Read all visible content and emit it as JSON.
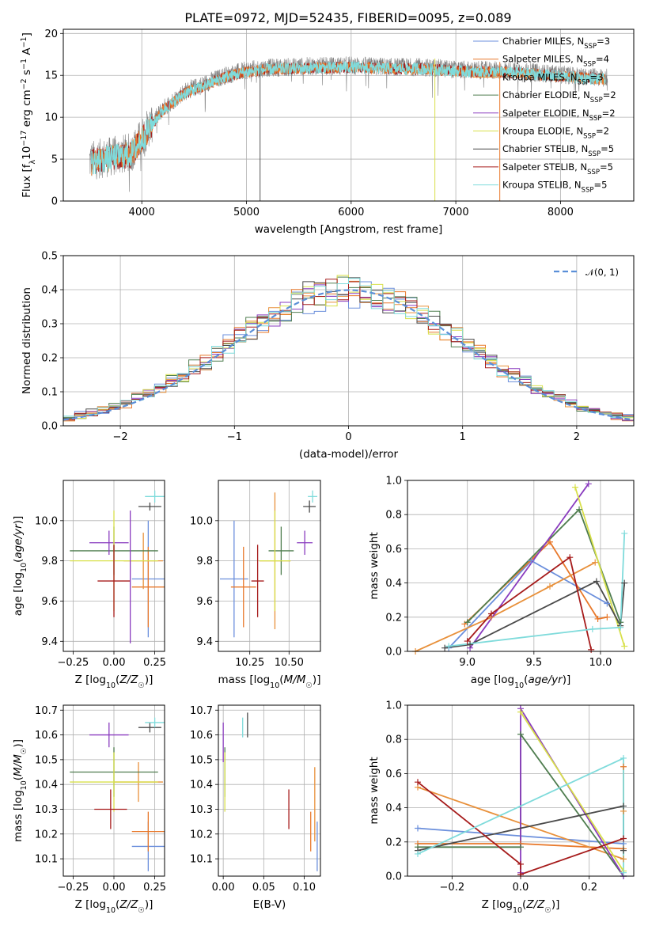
{
  "figure_title": "PLATE=0972, MJD=52435, FIBERID=0095, z=0.089",
  "models": [
    {
      "name": "Chabrier MILES",
      "nssp": "3",
      "color": "#6b8fdc"
    },
    {
      "name": "Salpeter MILES",
      "nssp": "4",
      "color": "#e8782a"
    },
    {
      "name": "Kroupa MILES",
      "nssp": "3",
      "color": "#e8903a"
    },
    {
      "name": "Chabrier ELODIE",
      "nssp": "2",
      "color": "#4f7d4f"
    },
    {
      "name": "Salpeter ELODIE",
      "nssp": "2",
      "color": "#8a3cbf"
    },
    {
      "name": "Kroupa ELODIE",
      "nssp": "2",
      "color": "#d8e04a"
    },
    {
      "name": "Chabrier STELIB",
      "nssp": "5",
      "color": "#4a4a4a"
    },
    {
      "name": "Salpeter STELIB",
      "nssp": "5",
      "color": "#a61b1b"
    },
    {
      "name": "Kroupa STELIB",
      "nssp": "5",
      "color": "#7fdbdb"
    }
  ],
  "chart_data": [
    {
      "id": "spectrum",
      "type": "line",
      "xlabel": "wavelength [Angstrom, rest frame]",
      "ylabel_parts": {
        "a": "Flux [f",
        "b": "λ",
        "c": "10",
        "d": "−17",
        "e": " erg cm",
        "f": "−2",
        "g": " s",
        "h": "−1",
        "i": " A",
        "j": "−1",
        "k": "]"
      },
      "xlim": [
        3250,
        8700
      ],
      "ylim": [
        0,
        20.5
      ],
      "xticks": [
        4000,
        5000,
        6000,
        7000,
        8000
      ],
      "yticks": [
        0,
        5,
        10,
        15,
        20
      ],
      "continuum": {
        "x": [
          3500,
          3700,
          3900,
          4050,
          4200,
          4400,
          4600,
          4800,
          5000,
          5200,
          5400,
          5600,
          5800,
          6000,
          6200,
          6400,
          6600,
          6800,
          7000,
          7200,
          7400,
          7600,
          7800,
          8000,
          8200,
          8450
        ],
        "y": [
          4.8,
          5.3,
          5.8,
          8.5,
          11.0,
          13.0,
          14.0,
          15.0,
          15.6,
          15.9,
          16.0,
          16.1,
          16.1,
          16.2,
          16.1,
          16.0,
          16.0,
          15.9,
          15.7,
          15.6,
          15.6,
          15.5,
          15.3,
          15.1,
          14.9,
          14.7
        ]
      },
      "series_color_data": "gray",
      "spikes": [
        {
          "x": 5130,
          "from": 0,
          "to": 16,
          "color": "#555555"
        },
        {
          "x": 6800,
          "from": 0,
          "to": 17,
          "color": "#d8e04a"
        },
        {
          "x": 7420,
          "from": 0,
          "to": 16.6,
          "color": "#e8782a"
        }
      ],
      "legend_position": "upper right"
    },
    {
      "id": "residuals",
      "type": "histogram",
      "xlabel": "(data-model)/error",
      "ylabel": "Normed distribution",
      "xlim": [
        -2.5,
        2.5
      ],
      "ylim": [
        0,
        0.5
      ],
      "xticks": [
        -2,
        -1,
        0,
        1,
        2
      ],
      "yticks": [
        0,
        0.1,
        0.2,
        0.3,
        0.4,
        0.5
      ],
      "bins": 50,
      "reference_label": "𝒩(0, 1)",
      "reference_color": "#5b8fd8"
    },
    {
      "id": "age-metallicity",
      "type": "errorbar",
      "xlabel": "Z [log10(Z/Z☉)]",
      "ylabel": "age  [log10(age/yr)]",
      "xlim": [
        -0.31,
        0.31
      ],
      "ylim": [
        9.35,
        10.2
      ],
      "xticks": [
        -0.25,
        0.0,
        0.25
      ],
      "yticks": [
        9.4,
        9.6,
        9.8,
        10.0
      ],
      "points": [
        {
          "model": 0,
          "x": 0.21,
          "xe": 0.1,
          "y": 9.71,
          "ye": 0.29
        },
        {
          "model": 1,
          "x": 0.21,
          "xe": 0.1,
          "y": 9.67,
          "ye": 0.2
        },
        {
          "model": 2,
          "x": 0.18,
          "xe": 0.12,
          "y": 9.8,
          "ye": 0.14
        },
        {
          "model": 3,
          "x": 0.0,
          "xe": 0.27,
          "y": 9.85,
          "ye": 0.12
        },
        {
          "model": 4,
          "x": -0.03,
          "xe": 0.12,
          "y": 9.89,
          "ye": 0.06
        },
        {
          "model": 5,
          "x": 0.0,
          "xe": 0.27,
          "y": 9.8,
          "ye": 0.25
        },
        {
          "model": 6,
          "x": 0.22,
          "xe": 0.07,
          "y": 10.07,
          "ye": 0.02
        },
        {
          "model": 7,
          "x": 0.0,
          "xe": 0.1,
          "y": 9.7,
          "ye": 0.18
        },
        {
          "model": 8,
          "x": 0.25,
          "xe": 0.06,
          "y": 10.12,
          "ye": 0.03
        },
        {
          "model": 4,
          "x": 0.1,
          "xe": 0.0,
          "y": 9.72,
          "ye": 0.33
        }
      ]
    },
    {
      "id": "age-mass",
      "type": "errorbar",
      "xlabel": "mass [log10(M/M☉)]",
      "xlim": [
        10.05,
        10.7
      ],
      "ylim": [
        9.35,
        10.2
      ],
      "xticks": [
        10.25,
        10.5
      ],
      "yticks": [
        9.4,
        9.6,
        9.8,
        10.0
      ],
      "points": [
        {
          "model": 0,
          "x": 10.15,
          "xe": 0.09,
          "y": 9.71,
          "ye": 0.29
        },
        {
          "model": 1,
          "x": 10.21,
          "xe": 0.08,
          "y": 9.67,
          "ye": 0.2
        },
        {
          "model": 2,
          "x": 10.41,
          "xe": 0.1,
          "y": 9.8,
          "ye": 0.34
        },
        {
          "model": 3,
          "x": 10.45,
          "xe": 0.08,
          "y": 9.85,
          "ye": 0.12
        },
        {
          "model": 4,
          "x": 10.6,
          "xe": 0.05,
          "y": 9.89,
          "ye": 0.06
        },
        {
          "model": 5,
          "x": 10.41,
          "xe": 0.1,
          "y": 9.8,
          "ye": 0.25
        },
        {
          "model": 6,
          "x": 10.63,
          "xe": 0.04,
          "y": 10.07,
          "ye": 0.03
        },
        {
          "model": 7,
          "x": 10.3,
          "xe": 0.04,
          "y": 9.7,
          "ye": 0.18
        },
        {
          "model": 8,
          "x": 10.65,
          "xe": 0.03,
          "y": 10.12,
          "ye": 0.03
        }
      ]
    },
    {
      "id": "weight-age",
      "type": "line",
      "xlabel": "age  [log10(age/yr)]",
      "ylabel": "mass weight",
      "xlim": [
        8.55,
        10.25
      ],
      "ylim": [
        0,
        1
      ],
      "xticks": [
        9.0,
        9.5,
        10.0
      ],
      "yticks": [
        0.0,
        0.2,
        0.4,
        0.6,
        0.8,
        1.0
      ],
      "series": [
        {
          "model": 0,
          "x": [
            8.86,
            9.48,
            10.05
          ],
          "y": [
            0.02,
            0.53,
            0.28
          ]
        },
        {
          "model": 1,
          "x": [
            8.98,
            9.62,
            9.98,
            10.05
          ],
          "y": [
            0.16,
            0.64,
            0.19,
            0.2
          ]
        },
        {
          "model": 2,
          "x": [
            8.61,
            9.18,
            9.62,
            9.96
          ],
          "y": [
            0.0,
            0.2,
            0.38,
            0.52
          ]
        },
        {
          "model": 3,
          "x": [
            9.0,
            9.84,
            10.15
          ],
          "y": [
            0.17,
            0.83,
            0.17
          ]
        },
        {
          "model": 4,
          "x": [
            9.02,
            9.91
          ],
          "y": [
            0.02,
            0.98
          ]
        },
        {
          "model": 5,
          "x": [
            9.81,
            10.18
          ],
          "y": [
            0.96,
            0.03
          ]
        },
        {
          "model": 6,
          "x": [
            8.83,
            9.02,
            9.97,
            10.15,
            10.18
          ],
          "y": [
            0.02,
            0.04,
            0.41,
            0.15,
            0.4
          ]
        },
        {
          "model": 7,
          "x": [
            9.0,
            9.18,
            9.77,
            9.93
          ],
          "y": [
            0.06,
            0.22,
            0.55,
            0.01
          ]
        },
        {
          "model": 8,
          "x": [
            8.86,
            9.94,
            10.15,
            10.18
          ],
          "y": [
            0.03,
            0.13,
            0.14,
            0.69
          ]
        }
      ]
    },
    {
      "id": "mass-metallicity",
      "type": "errorbar",
      "xlabel": "Z [log10(Z/Z☉)]",
      "ylabel": "mass [log10(M/M☉)]",
      "xlim": [
        -0.31,
        0.31
      ],
      "ylim": [
        10.03,
        10.72
      ],
      "xticks": [
        -0.25,
        0.0,
        0.25
      ],
      "yticks": [
        10.1,
        10.2,
        10.3,
        10.4,
        10.5,
        10.6,
        10.7
      ],
      "points": [
        {
          "model": 0,
          "x": 0.21,
          "xe": 0.1,
          "y": 10.15,
          "ye": 0.1
        },
        {
          "model": 1,
          "x": 0.21,
          "xe": 0.1,
          "y": 10.21,
          "ye": 0.08
        },
        {
          "model": 2,
          "x": 0.15,
          "xe": 0.15,
          "y": 10.41,
          "ye": 0.08
        },
        {
          "model": 3,
          "x": 0.0,
          "xe": 0.27,
          "y": 10.45,
          "ye": 0.1
        },
        {
          "model": 4,
          "x": -0.03,
          "xe": 0.12,
          "y": 10.6,
          "ye": 0.05
        },
        {
          "model": 5,
          "x": 0.0,
          "xe": 0.27,
          "y": 10.41,
          "ye": 0.12
        },
        {
          "model": 6,
          "x": 0.22,
          "xe": 0.07,
          "y": 10.63,
          "ye": 0.02
        },
        {
          "model": 7,
          "x": -0.02,
          "xe": 0.1,
          "y": 10.3,
          "ye": 0.08
        },
        {
          "model": 8,
          "x": 0.25,
          "xe": 0.06,
          "y": 10.65,
          "ye": 0.02
        }
      ]
    },
    {
      "id": "mass-ebv",
      "type": "errorbar",
      "xlabel": "E(B-V)",
      "xlim": [
        -0.006,
        0.12
      ],
      "ylim": [
        10.03,
        10.72
      ],
      "xticks": [
        0.0,
        0.05,
        0.1
      ],
      "yticks": [
        10.1,
        10.2,
        10.3,
        10.4,
        10.5,
        10.6,
        10.7
      ],
      "points": [
        {
          "model": 0,
          "x": 0.116,
          "xe": 0,
          "y": 10.15,
          "ye": 0.1
        },
        {
          "model": 1,
          "x": 0.108,
          "xe": 0,
          "y": 10.21,
          "ye": 0.08
        },
        {
          "model": 2,
          "x": 0.113,
          "xe": 0,
          "y": 10.32,
          "ye": 0.15
        },
        {
          "model": 3,
          "x": 0.002,
          "xe": 0,
          "y": 10.45,
          "ye": 0.1
        },
        {
          "model": 4,
          "x": 0.0,
          "xe": 0,
          "y": 10.57,
          "ye": 0.08
        },
        {
          "model": 5,
          "x": 0.002,
          "xe": 0,
          "y": 10.41,
          "ye": 0.12
        },
        {
          "model": 6,
          "x": 0.03,
          "xe": 0,
          "y": 10.64,
          "ye": 0.05
        },
        {
          "model": 7,
          "x": 0.081,
          "xe": 0,
          "y": 10.3,
          "ye": 0.08
        },
        {
          "model": 8,
          "x": 0.024,
          "xe": 0,
          "y": 10.63,
          "ye": 0.04
        }
      ]
    },
    {
      "id": "weight-metallicity",
      "type": "line",
      "xlabel": "Z [log10(Z/Z☉)]",
      "ylabel": "mass weight",
      "xlim": [
        -0.33,
        0.33
      ],
      "ylim": [
        0,
        1
      ],
      "xticks": [
        -0.2,
        0.0,
        0.2
      ],
      "yticks": [
        0.0,
        0.2,
        0.4,
        0.6,
        0.8,
        1.0
      ],
      "series": [
        {
          "model": 0,
          "x": [
            -0.3,
            0.3
          ],
          "y": [
            0.28,
            0.19
          ]
        },
        {
          "model": 1,
          "x": [
            -0.3,
            0.0,
            0.3,
            0.3
          ],
          "y": [
            0.19,
            0.19,
            0.16,
            0.64
          ]
        },
        {
          "model": 2,
          "x": [
            -0.3,
            0.3,
            0.3
          ],
          "y": [
            0.52,
            0.1,
            0.38
          ]
        },
        {
          "model": 3,
          "x": [
            -0.3,
            0.0,
            0.0,
            0.3
          ],
          "y": [
            0.17,
            0.17,
            0.83,
            0.0
          ]
        },
        {
          "model": 4,
          "x": [
            0.0,
            0.0,
            0.3
          ],
          "y": [
            0.02,
            0.98,
            0.0
          ]
        },
        {
          "model": 5,
          "x": [
            0.0,
            0.3
          ],
          "y": [
            0.96,
            0.03
          ]
        },
        {
          "model": 6,
          "x": [
            -0.3,
            0.3,
            0.3
          ],
          "y": [
            0.15,
            0.41,
            0.15
          ]
        },
        {
          "model": 7,
          "x": [
            -0.3,
            0.0,
            0.0,
            0.3
          ],
          "y": [
            0.55,
            0.07,
            0.01,
            0.22
          ]
        },
        {
          "model": 8,
          "x": [
            -0.3,
            0.3,
            0.3
          ],
          "y": [
            0.13,
            0.69,
            0.02
          ]
        }
      ]
    }
  ]
}
